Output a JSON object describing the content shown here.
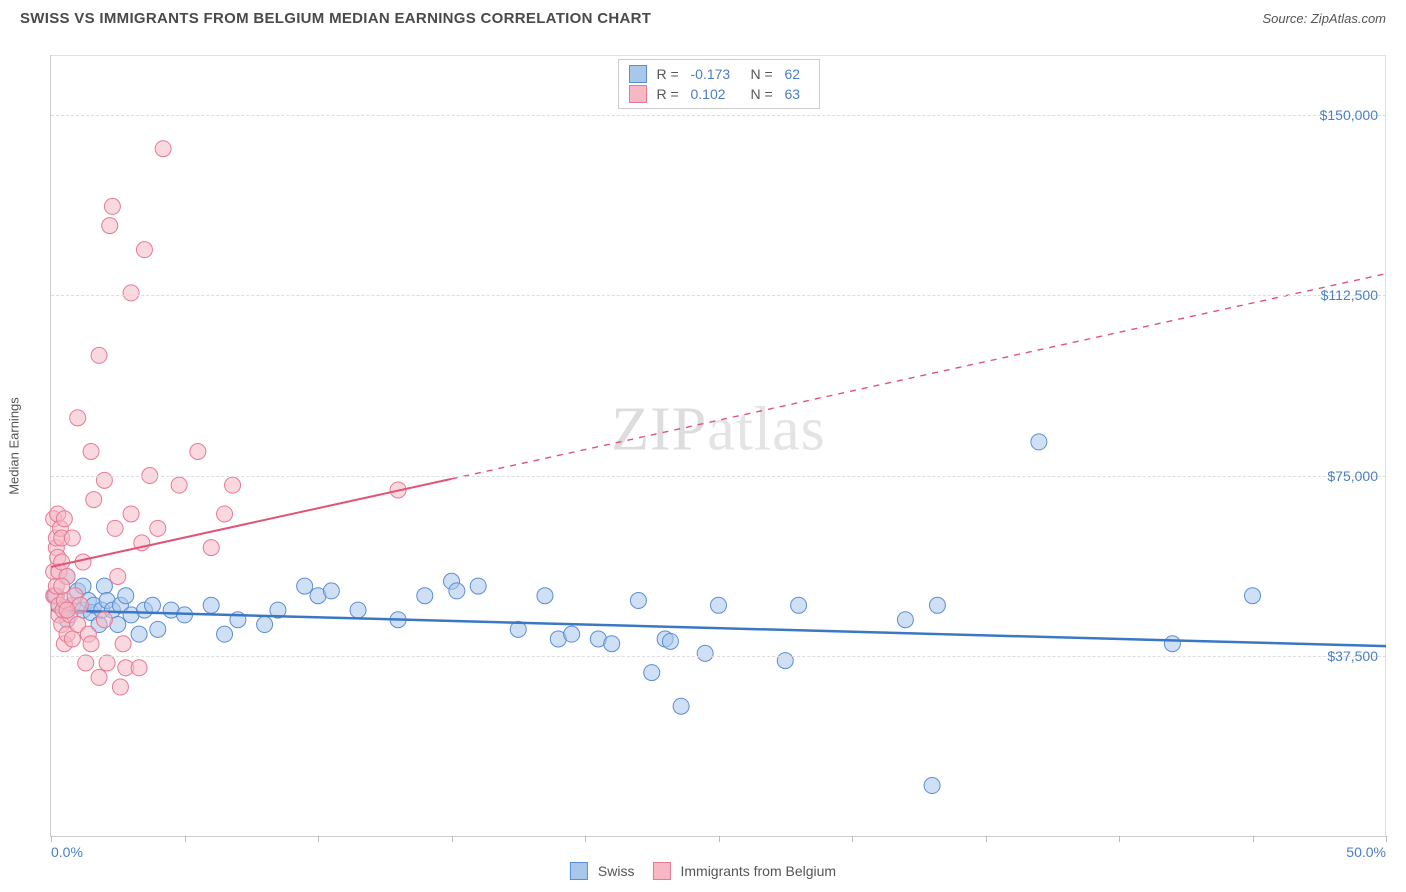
{
  "header": {
    "title": "SWISS VS IMMIGRANTS FROM BELGIUM MEDIAN EARNINGS CORRELATION CHART",
    "source": "Source: ZipAtlas.com"
  },
  "watermark": {
    "part1": "ZIP",
    "part2": "atlas"
  },
  "chart": {
    "type": "scatter",
    "yaxis_title": "Median Earnings",
    "xlim": [
      0,
      50
    ],
    "ylim": [
      0,
      162500
    ],
    "xticks": [
      0,
      5,
      10,
      15,
      20,
      25,
      30,
      35,
      40,
      45,
      50
    ],
    "xlabels": [
      {
        "v": 0,
        "t": "0.0%"
      },
      {
        "v": 50,
        "t": "50.0%"
      }
    ],
    "ylabels": [
      {
        "v": 37500,
        "t": "$37,500"
      },
      {
        "v": 75000,
        "t": "$75,000"
      },
      {
        "v": 112500,
        "t": "$112,500"
      },
      {
        "v": 150000,
        "t": "$150,000"
      }
    ],
    "grid_color": "#dddddd",
    "background_color": "#ffffff",
    "marker_radius": 8,
    "marker_opacity": 0.55,
    "series": [
      {
        "name": "Swiss",
        "color_fill": "#a9c7eb",
        "color_stroke": "#5a8fd6",
        "swatch_fill": "#a9c7eb",
        "swatch_stroke": "#5a8fd6",
        "R": "-0.173",
        "N": "62",
        "trend": {
          "x1": 0,
          "y1": 47000,
          "x2": 50,
          "y2": 39500,
          "solid_until_x": 50,
          "color": "#3b78c4",
          "width": 2.5
        },
        "points": [
          [
            0.2,
            50000
          ],
          [
            0.3,
            48000
          ],
          [
            0.5,
            47500
          ],
          [
            0.6,
            54000
          ],
          [
            0.6,
            45000
          ],
          [
            0.8,
            48000
          ],
          [
            1.0,
            51000
          ],
          [
            1.2,
            47000
          ],
          [
            1.2,
            52000
          ],
          [
            1.4,
            49000
          ],
          [
            1.5,
            46500
          ],
          [
            1.6,
            48000
          ],
          [
            1.8,
            44000
          ],
          [
            1.9,
            47000
          ],
          [
            2.0,
            52000
          ],
          [
            2.1,
            49000
          ],
          [
            2.3,
            47000
          ],
          [
            2.5,
            44000
          ],
          [
            2.6,
            48000
          ],
          [
            2.8,
            50000
          ],
          [
            3.0,
            46000
          ],
          [
            3.3,
            42000
          ],
          [
            3.5,
            47000
          ],
          [
            3.8,
            48000
          ],
          [
            4.0,
            43000
          ],
          [
            4.5,
            47000
          ],
          [
            5.0,
            46000
          ],
          [
            6.0,
            48000
          ],
          [
            6.5,
            42000
          ],
          [
            7.0,
            45000
          ],
          [
            8.0,
            44000
          ],
          [
            8.5,
            47000
          ],
          [
            9.5,
            52000
          ],
          [
            10.0,
            50000
          ],
          [
            10.5,
            51000
          ],
          [
            11.5,
            47000
          ],
          [
            13.0,
            45000
          ],
          [
            14.0,
            50000
          ],
          [
            15.0,
            53000
          ],
          [
            15.2,
            51000
          ],
          [
            16.0,
            52000
          ],
          [
            17.5,
            43000
          ],
          [
            18.5,
            50000
          ],
          [
            19.0,
            41000
          ],
          [
            19.5,
            42000
          ],
          [
            20.5,
            41000
          ],
          [
            21.0,
            40000
          ],
          [
            22.0,
            49000
          ],
          [
            22.5,
            34000
          ],
          [
            23.0,
            41000
          ],
          [
            23.2,
            40500
          ],
          [
            23.6,
            27000
          ],
          [
            24.5,
            38000
          ],
          [
            25.0,
            48000
          ],
          [
            27.5,
            36500
          ],
          [
            28.0,
            48000
          ],
          [
            32.0,
            45000
          ],
          [
            33.0,
            10500
          ],
          [
            33.2,
            48000
          ],
          [
            37.0,
            82000
          ],
          [
            42.0,
            40000
          ],
          [
            45.0,
            50000
          ]
        ]
      },
      {
        "name": "Immigrants from Belgium",
        "color_fill": "#f5b8c4",
        "color_stroke": "#e77a93",
        "swatch_fill": "#f5b8c4",
        "swatch_stroke": "#e77a93",
        "R": " 0.102",
        "N": "63",
        "trend": {
          "x1": 0,
          "y1": 56000,
          "x2": 50,
          "y2": 117000,
          "solid_until_x": 15,
          "color": "#e05577",
          "width": 2
        },
        "points": [
          [
            0.1,
            50000
          ],
          [
            0.1,
            55000
          ],
          [
            0.1,
            66000
          ],
          [
            0.15,
            50000
          ],
          [
            0.2,
            52000
          ],
          [
            0.2,
            60000
          ],
          [
            0.2,
            62000
          ],
          [
            0.25,
            58000
          ],
          [
            0.25,
            67000
          ],
          [
            0.3,
            46000
          ],
          [
            0.3,
            48000
          ],
          [
            0.3,
            55000
          ],
          [
            0.35,
            64000
          ],
          [
            0.4,
            44000
          ],
          [
            0.4,
            57000
          ],
          [
            0.4,
            62000
          ],
          [
            0.45,
            47000
          ],
          [
            0.5,
            40000
          ],
          [
            0.5,
            49000
          ],
          [
            0.5,
            66000
          ],
          [
            0.6,
            42000
          ],
          [
            0.6,
            54000
          ],
          [
            0.7,
            46000
          ],
          [
            0.8,
            62000
          ],
          [
            0.9,
            50000
          ],
          [
            1.0,
            44000
          ],
          [
            1.0,
            87000
          ],
          [
            1.1,
            48000
          ],
          [
            1.2,
            57000
          ],
          [
            1.3,
            36000
          ],
          [
            1.4,
            42000
          ],
          [
            1.5,
            40000
          ],
          [
            1.5,
            80000
          ],
          [
            1.6,
            70000
          ],
          [
            1.8,
            33000
          ],
          [
            1.8,
            100000
          ],
          [
            2.0,
            45000
          ],
          [
            2.0,
            74000
          ],
          [
            2.1,
            36000
          ],
          [
            2.2,
            127000
          ],
          [
            2.3,
            131000
          ],
          [
            2.4,
            64000
          ],
          [
            2.5,
            54000
          ],
          [
            2.6,
            31000
          ],
          [
            2.7,
            40000
          ],
          [
            2.8,
            35000
          ],
          [
            3.0,
            67000
          ],
          [
            3.0,
            113000
          ],
          [
            3.3,
            35000
          ],
          [
            3.4,
            61000
          ],
          [
            3.5,
            122000
          ],
          [
            3.7,
            75000
          ],
          [
            4.0,
            64000
          ],
          [
            4.2,
            143000
          ],
          [
            4.8,
            73000
          ],
          [
            5.5,
            80000
          ],
          [
            6.0,
            60000
          ],
          [
            6.5,
            67000
          ],
          [
            6.8,
            73000
          ],
          [
            13.0,
            72000
          ],
          [
            0.4,
            52000
          ],
          [
            0.6,
            47000
          ],
          [
            0.8,
            41000
          ]
        ]
      }
    ]
  },
  "legend": {
    "top_rows": [
      {
        "series_idx": 0
      },
      {
        "series_idx": 1
      }
    ],
    "bottom_items": [
      {
        "series_idx": 0
      },
      {
        "series_idx": 1
      }
    ],
    "R_label": "R =",
    "N_label": "N ="
  }
}
